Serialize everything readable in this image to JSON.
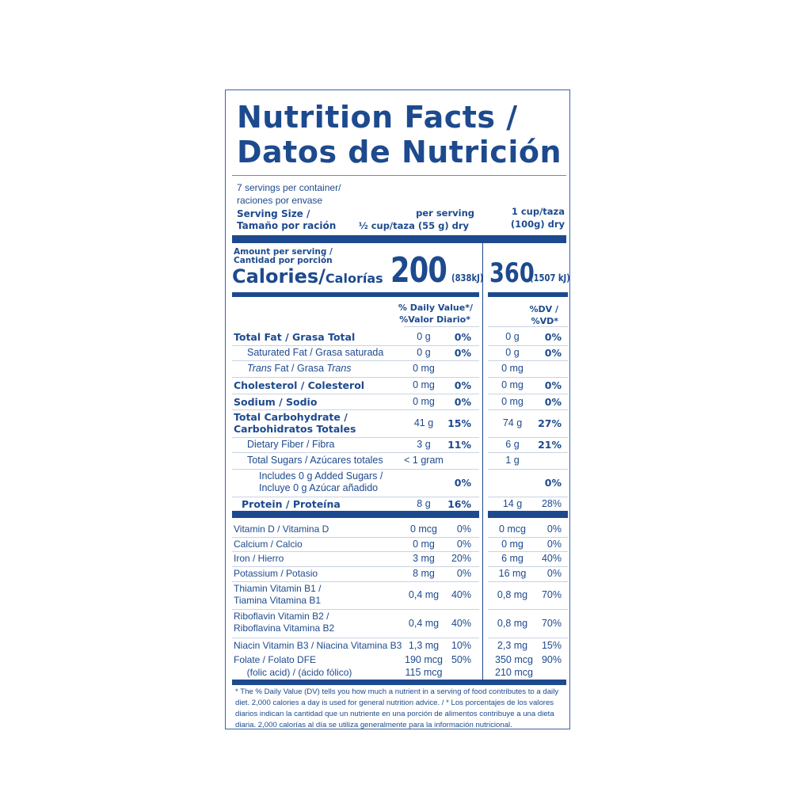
{
  "title_line1": "Nutrition Facts /",
  "title_line2": "Datos de Nutrición",
  "servings_line1": "7 servings per container/",
  "servings_line2": "raciones por envase",
  "serving_size_line1": "Serving Size /",
  "serving_size_line2": "Tamaño por ración",
  "per_serving_line1": "per serving",
  "per_serving_line2": "½ cup/taza (55 g) dry",
  "alt_serving_line1": "1 cup/taza",
  "alt_serving_line2": "(100g) dry",
  "amount_line1": "Amount per serving /",
  "amount_line2": "Cantidad por porción",
  "calories_en": "Calories/",
  "calories_es": "Calorías",
  "calories": "200",
  "calories_kj": "(838kJ)",
  "calories_alt": "360",
  "calories_alt_kj": "(1507 kJ)",
  "dv_line1": "% Daily Value*/",
  "dv_line2": "%Valor Diario*",
  "dv_alt_line1": "%DV /",
  "dv_alt_line2": "%VD*",
  "rows": [
    {
      "label": [
        {
          "t": "Total Fat / Grasa Total"
        }
      ],
      "bold": true,
      "amt": "0 g",
      "pct": "0%",
      "amt2": "0 g",
      "pct2": "0%"
    },
    {
      "label": [
        {
          "t": "Saturated Fat / Grasa saturada"
        }
      ],
      "indent": 1,
      "amt": "0 g",
      "pct": "0%",
      "amt2": "0 g",
      "pct2": "0%"
    },
    {
      "label": [
        {
          "t": "Trans",
          "i": true
        },
        {
          "t": " Fat / Grasa "
        },
        {
          "t": "Trans",
          "i": true
        }
      ],
      "indent": 1,
      "amt": "0 mg",
      "pct": "",
      "amt2": "0 mg",
      "pct2": ""
    },
    {
      "label": [
        {
          "t": "Cholesterol / Colesterol"
        }
      ],
      "bold": true,
      "amt": "0 mg",
      "pct": "0%",
      "amt2": "0 mg",
      "pct2": "0%"
    },
    {
      "label": [
        {
          "t": "Sodium / Sodio"
        }
      ],
      "bold": true,
      "amt": "0 mg",
      "pct": "0%",
      "amt2": "0 mg",
      "pct2": "0%"
    },
    {
      "label": [
        {
          "t": "Total Carbohydrate /"
        },
        {
          "t": "Carbohidratos Totales",
          "br": true
        }
      ],
      "bold": true,
      "amt": "41 g",
      "pct": "15%",
      "amt2": "74 g",
      "pct2": "27%"
    },
    {
      "label": [
        {
          "t": "Dietary Fiber / Fibra"
        }
      ],
      "indent": 1,
      "amt": "3 g",
      "pct": "11%",
      "amt2": "6 g",
      "pct2": "21%"
    },
    {
      "label": [
        {
          "t": "Total Sugars / Azúcares totales"
        }
      ],
      "indent": 1,
      "amt": "< 1 gram",
      "pct": "",
      "amt2": "1 g",
      "pct2": ""
    },
    {
      "label": [
        {
          "t": "Includes 0 g Added Sugars /"
        },
        {
          "t": "Incluye 0 g Azúcar añadido",
          "br": true
        }
      ],
      "indent": 2,
      "amt": "",
      "pct": "0%",
      "amt2": "",
      "pct2": "0%"
    },
    {
      "label": [
        {
          "t": "Protein / Proteína"
        }
      ],
      "bold": true,
      "indent": 0.5,
      "amt": "8 g",
      "pct": "16%",
      "amt2": "14 g",
      "pct2": "28%",
      "pct2_plain": true
    },
    {
      "label": [
        {
          "t": "Vitamin D / Vitamina D"
        }
      ],
      "vit": true,
      "amt": "0 mcg",
      "pct": "0%",
      "amt2": "0 mcg",
      "pct2": "0%"
    },
    {
      "label": [
        {
          "t": "Calcium / Calcio"
        }
      ],
      "vit": true,
      "amt": "0 mg",
      "pct": "0%",
      "amt2": "0 mg",
      "pct2": "0%"
    },
    {
      "label": [
        {
          "t": "Iron / Hierro"
        }
      ],
      "vit": true,
      "amt": "3 mg",
      "pct": "20%",
      "amt2": "6 mg",
      "pct2": "40%"
    },
    {
      "label": [
        {
          "t": "Potassium / Potasio"
        }
      ],
      "vit": true,
      "amt": "8 mg",
      "pct": "0%",
      "amt2": "16 mg",
      "pct2": "0%"
    },
    {
      "label": [
        {
          "t": "Thiamin Vitamin B1 /"
        },
        {
          "t": "Tiamina Vitamina B1",
          "br": true
        }
      ],
      "vit": true,
      "amt": "0,4 mg",
      "pct": "40%",
      "amt2": "0,8 mg",
      "pct2": "70%"
    },
    {
      "label": [
        {
          "t": "Riboflavin Vitamin B2 /"
        },
        {
          "t": "Riboflavina Vitamina B2",
          "br": true
        }
      ],
      "vit": true,
      "amt": "0,4 mg",
      "pct": "40%",
      "amt2": "0,8 mg",
      "pct2": "70%"
    },
    {
      "label": [
        {
          "t": "Niacin Vitamin B3 / Niacina Vitamina B3"
        }
      ],
      "vit": true,
      "amt": "1,3 mg",
      "pct": "10%",
      "amt2": "2,3 mg",
      "pct2": "15%"
    },
    {
      "label": [
        {
          "t": "Folate / Folato DFE"
        }
      ],
      "vit": true,
      "amt": "190 mcg",
      "pct": "50%",
      "amt2": "350 mcg",
      "pct2": "90%",
      "top": true
    },
    {
      "label": [
        {
          "t": "     (folic acid) / (ácido fólico)"
        }
      ],
      "vit": true,
      "amt": "115 mcg",
      "pct": "",
      "amt2": "210 mcg",
      "pct2": "",
      "noline": true
    }
  ],
  "footnote": "* The % Daily Value (DV) tells you how much a nutrient in a serving of food contributes to a daily diet. 2,000 calories a day is used for general nutrition advice. / * Los porcentajes de los valores diarios indican la cantidad que un nutriente en una porción de alimentos contribuye a una dieta diaria. 2,000 calorías al día se utiliza generalmente para la información nutricional."
}
